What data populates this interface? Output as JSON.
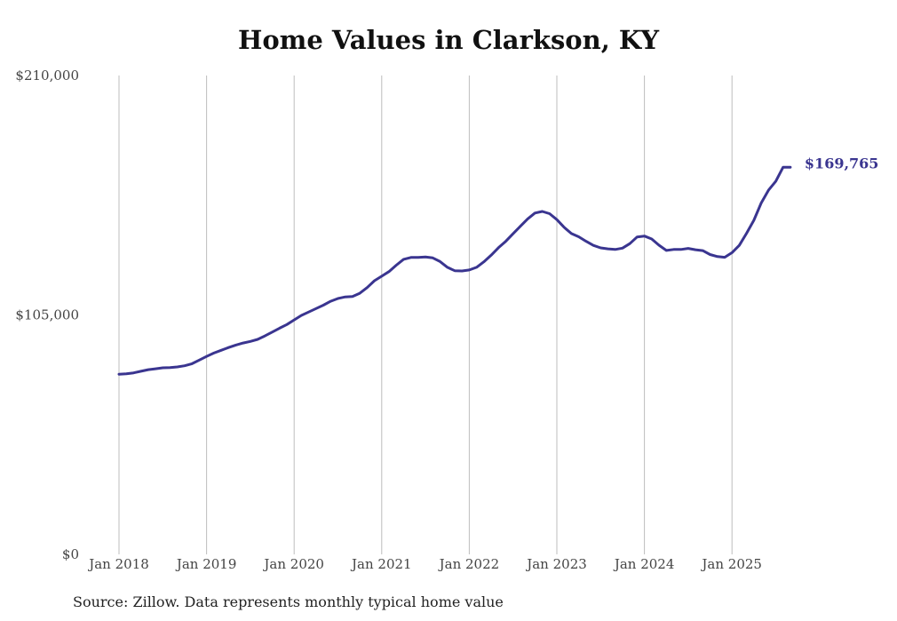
{
  "chart_data": {
    "type": "line",
    "title": "Home Values in Clarkson, KY",
    "source": "Source: Zillow. Data represents monthly typical home value",
    "ylim": [
      0,
      210000
    ],
    "y_ticks": [
      {
        "value": 0,
        "label": "$0"
      },
      {
        "value": 105000,
        "label": "$105,000"
      },
      {
        "value": 210000,
        "label": "$210,000"
      }
    ],
    "x_ticks": [
      "Jan 2018",
      "Jan 2019",
      "Jan 2020",
      "Jan 2021",
      "Jan 2022",
      "Jan 2023",
      "Jan 2024",
      "Jan 2025"
    ],
    "grid": "vertical",
    "line_color": "#3a3590",
    "end_label": "$169,765",
    "series": [
      {
        "start": "2018-01",
        "values": [
          79000,
          79200,
          79600,
          80300,
          81000,
          81400,
          81800,
          81900,
          82200,
          82700,
          83600,
          85200,
          86800,
          88300,
          89500,
          90700,
          91800,
          92700,
          93400,
          94300,
          95800,
          97500,
          99200,
          100800,
          102800,
          104800,
          106300,
          107800,
          109300,
          111000,
          112200,
          112900,
          113100,
          114500,
          117000,
          120000,
          122000,
          124000,
          126800,
          129400,
          130200,
          130200,
          130400,
          130000,
          128400,
          125900,
          124400,
          124300,
          124700,
          125900,
          128300,
          131200,
          134500,
          137300,
          140600,
          143900,
          147100,
          149700,
          150400,
          149400,
          146800,
          143400,
          140700,
          139300,
          137300,
          135500,
          134400,
          134000,
          133700,
          134300,
          136300,
          139200,
          139600,
          138300,
          135600,
          133300,
          133700,
          133700,
          134200,
          133600,
          133200,
          131500,
          130600,
          130300,
          132300,
          135500,
          140800,
          146500,
          154100,
          159700,
          163600,
          169765,
          169765
        ]
      }
    ]
  }
}
